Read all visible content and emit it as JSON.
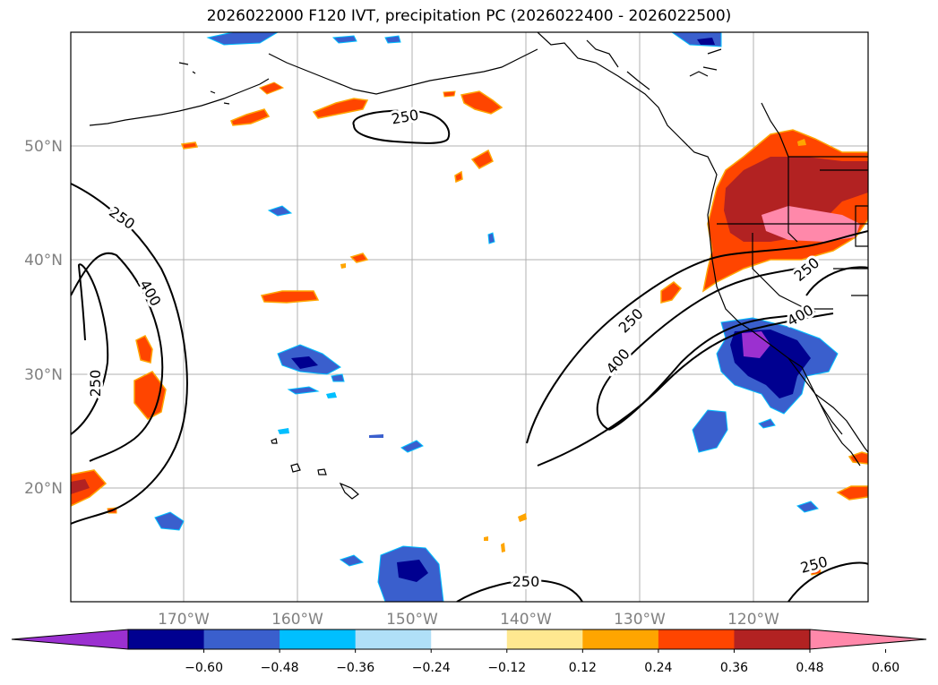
{
  "title": "2026022000 F120 IVT, precipitation PC (2026022400 - 2026022500)",
  "axes": {
    "lon_ticks": [
      "170°W",
      "160°W",
      "150°W",
      "140°W",
      "130°W",
      "120°W"
    ],
    "lat_ticks": [
      "50°N",
      "40°N",
      "30°N",
      "20°N"
    ]
  },
  "contour_labels": [
    "250",
    "400",
    "250",
    "250",
    "400",
    "250",
    "400",
    "250",
    "250",
    "250"
  ],
  "colorbar": {
    "ticks": [
      "−0.60",
      "−0.48",
      "−0.36",
      "−0.24",
      "−0.12",
      "0.12",
      "0.24",
      "0.36",
      "0.48",
      "0.60"
    ],
    "colors": [
      "#9b30d0",
      "#000090",
      "#3a5fcd",
      "#00bfff",
      "#b0e0f8",
      "#ffffff",
      "#ffe890",
      "#ffa500",
      "#ff4500",
      "#b22222",
      "#ff88aa"
    ]
  }
}
